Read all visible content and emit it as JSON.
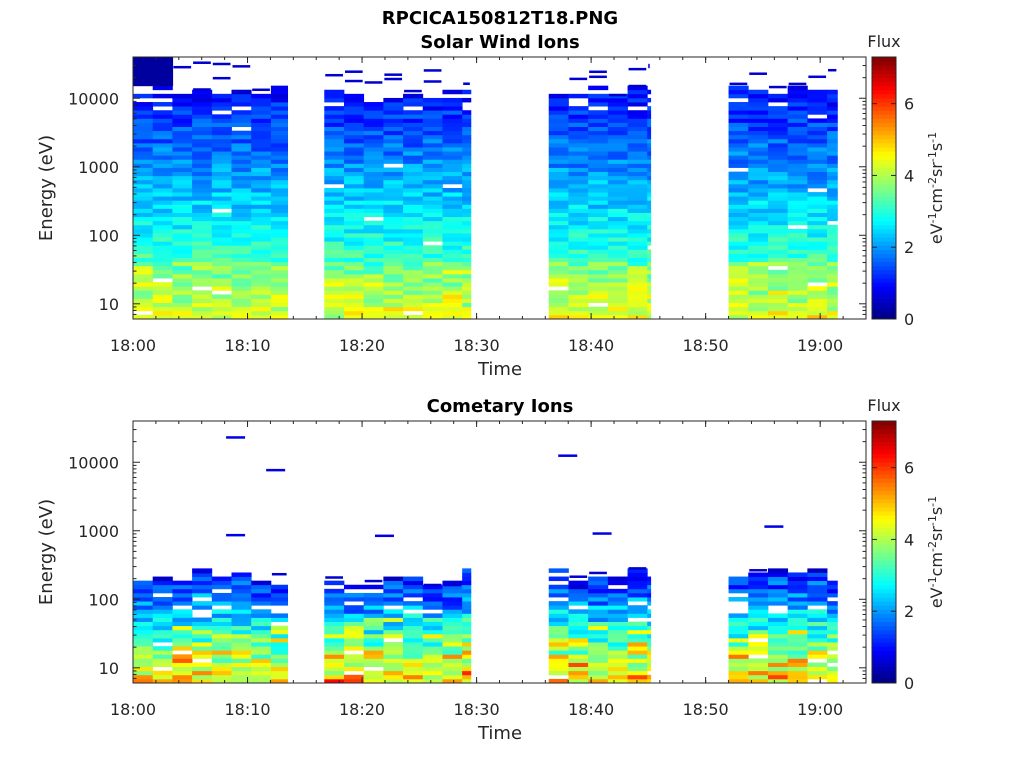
{
  "figure": {
    "title": "RPCICA150812T18.PNG"
  },
  "chart_data": [
    {
      "type": "heatmap",
      "title": "Solar Wind Ions",
      "xlabel": "Time",
      "ylabel": "Energy (eV)",
      "y_scale": "log",
      "xlim": [
        "18:00",
        "19:04"
      ],
      "ylim": [
        6,
        40000
      ],
      "x_ticks": [
        "18:00",
        "18:10",
        "18:20",
        "18:30",
        "18:40",
        "18:50",
        "19:00"
      ],
      "y_ticks": [
        "10",
        "100",
        "1000",
        "10000"
      ],
      "colorbar": {
        "label": "Flux",
        "unit": "eV⁻¹cm⁻²sr⁻¹s⁻¹",
        "range": [
          0,
          7.3
        ],
        "ticks": [
          "0",
          "2",
          "4",
          "6"
        ],
        "colormap": "jet"
      },
      "data_intervals": [
        [
          "18:00",
          "18:13.5"
        ],
        [
          "18:16.7",
          "18:29.5"
        ],
        [
          "18:36.3",
          "18:45.2"
        ],
        [
          "18:52",
          "19:01.5"
        ]
      ],
      "low_energy_flux_range": [
        2.5,
        4.8
      ],
      "high_energy_flux_range": [
        0.3,
        1.2
      ]
    },
    {
      "type": "heatmap",
      "title": "Cometary Ions",
      "xlabel": "Time",
      "ylabel": "Energy (eV)",
      "y_scale": "log",
      "xlim": [
        "18:00",
        "19:04"
      ],
      "ylim": [
        6,
        40000
      ],
      "x_ticks": [
        "18:00",
        "18:10",
        "18:20",
        "18:30",
        "18:40",
        "18:50",
        "19:00"
      ],
      "y_ticks": [
        "10",
        "100",
        "1000",
        "10000"
      ],
      "colorbar": {
        "label": "Flux",
        "unit": "eV⁻¹cm⁻²sr⁻¹s⁻¹",
        "range": [
          0,
          7.3
        ],
        "ticks": [
          "0",
          "2",
          "4",
          "6"
        ],
        "colormap": "jet"
      },
      "data_intervals": [
        [
          "18:00",
          "18:13.5"
        ],
        [
          "18:16.7",
          "18:29.5"
        ],
        [
          "18:36.3",
          "18:45.2"
        ],
        [
          "18:52",
          "19:01.5"
        ]
      ],
      "max_energy_main": 250,
      "sparse_high_energy_hits": [
        {
          "time": "18:09",
          "energy": 24000
        },
        {
          "time": "18:09",
          "energy": 900
        },
        {
          "time": "18:12.5",
          "energy": 8000
        },
        {
          "time": "18:22",
          "energy": 880
        },
        {
          "time": "18:38",
          "energy": 13000
        },
        {
          "time": "18:41",
          "energy": 950
        },
        {
          "time": "18:56",
          "energy": 1200
        }
      ],
      "peak_flux": 6.5
    }
  ]
}
